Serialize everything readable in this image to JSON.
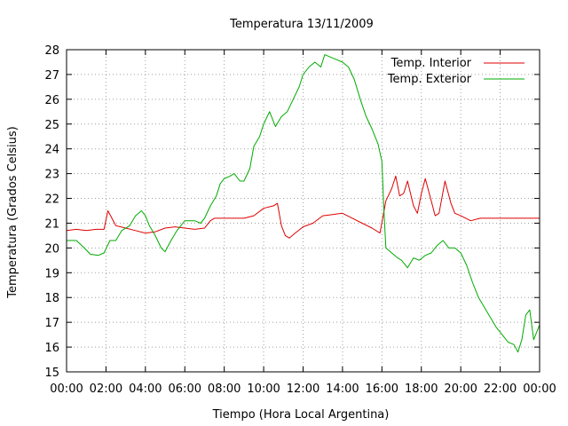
{
  "chart_data": {
    "type": "line",
    "title": "Temperatura 13/11/2009",
    "xlabel": "Tiempo (Hora Local Argentina)",
    "ylabel": "Temperatura (Grados Celsius)",
    "xlim": [
      0,
      24
    ],
    "ylim": [
      15,
      28
    ],
    "x_ticks": [
      "00:00",
      "02:00",
      "04:00",
      "06:00",
      "08:00",
      "10:00",
      "12:00",
      "14:00",
      "16:00",
      "18:00",
      "20:00",
      "22:00",
      "00:00"
    ],
    "y_ticks": [
      "15",
      "16",
      "17",
      "18",
      "19",
      "20",
      "21",
      "22",
      "23",
      "24",
      "25",
      "26",
      "27",
      "28"
    ],
    "grid": true,
    "legend_position": "top-right",
    "series": [
      {
        "name": "Temp. Interior",
        "color": "#dd0000",
        "points": [
          [
            0,
            20.7
          ],
          [
            0.5,
            20.75
          ],
          [
            1,
            20.7
          ],
          [
            1.5,
            20.75
          ],
          [
            1.9,
            20.75
          ],
          [
            2.1,
            21.5
          ],
          [
            2.3,
            21.2
          ],
          [
            2.5,
            20.9
          ],
          [
            3,
            20.8
          ],
          [
            3.5,
            20.7
          ],
          [
            4,
            20.6
          ],
          [
            4.5,
            20.65
          ],
          [
            5,
            20.8
          ],
          [
            5.5,
            20.85
          ],
          [
            6,
            20.8
          ],
          [
            6.5,
            20.75
          ],
          [
            7,
            20.8
          ],
          [
            7.3,
            21.1
          ],
          [
            7.5,
            21.2
          ],
          [
            8,
            21.2
          ],
          [
            9,
            21.2
          ],
          [
            9.5,
            21.3
          ],
          [
            10,
            21.6
          ],
          [
            10.5,
            21.7
          ],
          [
            10.7,
            21.8
          ],
          [
            10.9,
            20.9
          ],
          [
            11.1,
            20.5
          ],
          [
            11.3,
            20.4
          ],
          [
            11.6,
            20.6
          ],
          [
            12,
            20.85
          ],
          [
            12.5,
            21.0
          ],
          [
            13,
            21.3
          ],
          [
            13.5,
            21.35
          ],
          [
            14,
            21.4
          ],
          [
            14.5,
            21.2
          ],
          [
            15,
            21.0
          ],
          [
            15.5,
            20.8
          ],
          [
            15.9,
            20.6
          ],
          [
            16.2,
            21.9
          ],
          [
            16.5,
            22.4
          ],
          [
            16.7,
            22.9
          ],
          [
            16.9,
            22.1
          ],
          [
            17.1,
            22.2
          ],
          [
            17.3,
            22.7
          ],
          [
            17.6,
            21.7
          ],
          [
            17.8,
            21.4
          ],
          [
            18,
            22.2
          ],
          [
            18.2,
            22.8
          ],
          [
            18.5,
            21.9
          ],
          [
            18.7,
            21.3
          ],
          [
            18.9,
            21.4
          ],
          [
            19.2,
            22.7
          ],
          [
            19.5,
            21.8
          ],
          [
            19.7,
            21.4
          ],
          [
            20,
            21.3
          ],
          [
            20.5,
            21.1
          ],
          [
            21,
            21.2
          ],
          [
            22,
            21.2
          ],
          [
            23,
            21.2
          ],
          [
            24,
            21.2
          ]
        ]
      },
      {
        "name": "Temp. Exterior",
        "color": "#00aa00",
        "points": [
          [
            0,
            20.3
          ],
          [
            0.5,
            20.3
          ],
          [
            0.9,
            20.0
          ],
          [
            1.2,
            19.75
          ],
          [
            1.6,
            19.7
          ],
          [
            1.9,
            19.8
          ],
          [
            2.2,
            20.3
          ],
          [
            2.5,
            20.3
          ],
          [
            2.8,
            20.7
          ],
          [
            3.2,
            20.9
          ],
          [
            3.5,
            21.3
          ],
          [
            3.8,
            21.5
          ],
          [
            4,
            21.3
          ],
          [
            4.2,
            20.9
          ],
          [
            4.5,
            20.5
          ],
          [
            4.8,
            20.0
          ],
          [
            5,
            19.85
          ],
          [
            5.3,
            20.3
          ],
          [
            5.6,
            20.7
          ],
          [
            5.9,
            21.0
          ],
          [
            6,
            21.1
          ],
          [
            6.5,
            21.1
          ],
          [
            6.8,
            21.0
          ],
          [
            7,
            21.2
          ],
          [
            7.3,
            21.7
          ],
          [
            7.6,
            22.1
          ],
          [
            7.8,
            22.6
          ],
          [
            8,
            22.8
          ],
          [
            8.3,
            22.9
          ],
          [
            8.5,
            23.0
          ],
          [
            8.8,
            22.7
          ],
          [
            9,
            22.7
          ],
          [
            9.3,
            23.2
          ],
          [
            9.5,
            24.1
          ],
          [
            9.8,
            24.5
          ],
          [
            10,
            25.0
          ],
          [
            10.3,
            25.5
          ],
          [
            10.6,
            24.9
          ],
          [
            10.9,
            25.3
          ],
          [
            11.2,
            25.5
          ],
          [
            11.5,
            26.0
          ],
          [
            11.8,
            26.5
          ],
          [
            12,
            27.0
          ],
          [
            12.3,
            27.3
          ],
          [
            12.6,
            27.5
          ],
          [
            12.9,
            27.3
          ],
          [
            13.1,
            27.8
          ],
          [
            13.4,
            27.7
          ],
          [
            13.7,
            27.6
          ],
          [
            14,
            27.5
          ],
          [
            14.3,
            27.3
          ],
          [
            14.6,
            26.8
          ],
          [
            14.9,
            26.0
          ],
          [
            15.2,
            25.3
          ],
          [
            15.5,
            24.8
          ],
          [
            15.8,
            24.2
          ],
          [
            16.0,
            23.5
          ],
          [
            16.1,
            21.5
          ],
          [
            16.2,
            20.0
          ],
          [
            16.5,
            19.8
          ],
          [
            16.8,
            19.6
          ],
          [
            17.0,
            19.5
          ],
          [
            17.3,
            19.2
          ],
          [
            17.6,
            19.6
          ],
          [
            17.9,
            19.5
          ],
          [
            18.2,
            19.7
          ],
          [
            18.5,
            19.8
          ],
          [
            18.8,
            20.1
          ],
          [
            19.1,
            20.3
          ],
          [
            19.4,
            20.0
          ],
          [
            19.7,
            20.0
          ],
          [
            20,
            19.8
          ],
          [
            20.3,
            19.3
          ],
          [
            20.6,
            18.6
          ],
          [
            20.9,
            18.0
          ],
          [
            21.2,
            17.6
          ],
          [
            21.5,
            17.2
          ],
          [
            21.8,
            16.8
          ],
          [
            22.1,
            16.5
          ],
          [
            22.4,
            16.2
          ],
          [
            22.7,
            16.1
          ],
          [
            22.9,
            15.8
          ],
          [
            23.1,
            16.3
          ],
          [
            23.3,
            17.3
          ],
          [
            23.5,
            17.5
          ],
          [
            23.7,
            16.3
          ],
          [
            23.85,
            16.6
          ],
          [
            24,
            16.9
          ]
        ]
      }
    ]
  }
}
